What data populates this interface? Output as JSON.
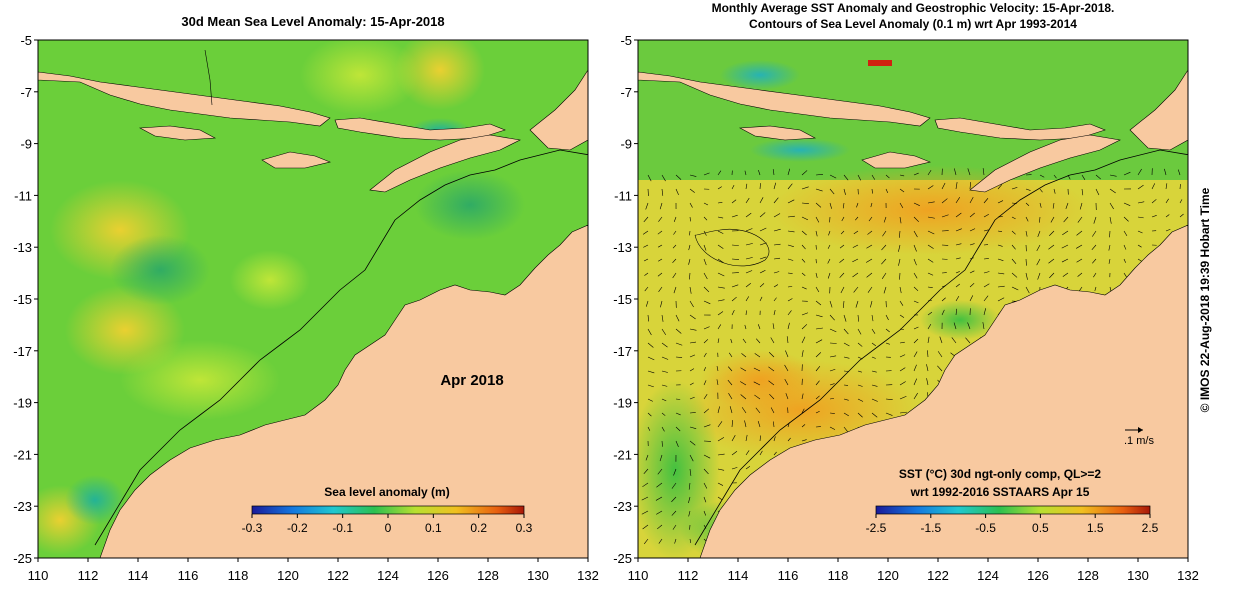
{
  "left_panel": {
    "title": "30d Mean Sea Level Anomaly: 15-Apr-2018",
    "date_label": "Apr 2018",
    "colorbar_title": "Sea level anomaly (m)",
    "colorbar_ticks": [
      "-0.3",
      "-0.2",
      "-0.1",
      "0",
      "0.1",
      "0.2",
      "0.3"
    ]
  },
  "right_panel": {
    "title_line1": "Monthly Average SST Anomaly  and Geostrophic Velocity: 15-Apr-2018.",
    "title_line2": "Contours of Sea Level Anomaly (0.1 m) wrt Apr 1993-2014",
    "legend_line1": "SST (°C) 30d ngt-only comp, QL>=2",
    "legend_line2": "wrt 1992-2016 SSTAARS Apr 15",
    "velocity_scale_label": ".1 m/s",
    "colorbar_ticks": [
      "-2.5",
      "-1.5",
      "-0.5",
      "0.5",
      "1.5",
      "2.5"
    ]
  },
  "axes": {
    "x_ticks": [
      "110",
      "112",
      "114",
      "116",
      "118",
      "120",
      "122",
      "124",
      "126",
      "128",
      "130",
      "132"
    ],
    "y_ticks": [
      "-5",
      "-7",
      "-9",
      "-11",
      "-13",
      "-15",
      "-17",
      "-19",
      "-21",
      "-23",
      "-25"
    ]
  },
  "credit": "© IMOS 22-Aug-2018 19:39 Hobart Time",
  "colors": {
    "land": "#f8c9a0",
    "ocean_left": "#6bcf3a",
    "ocean_right": "#d8d43a",
    "colorbar_stops": [
      "#1a1a9a",
      "#1478e0",
      "#20c8d0",
      "#2cc050",
      "#b8e030",
      "#f0c020",
      "#e86010",
      "#a81808"
    ]
  }
}
